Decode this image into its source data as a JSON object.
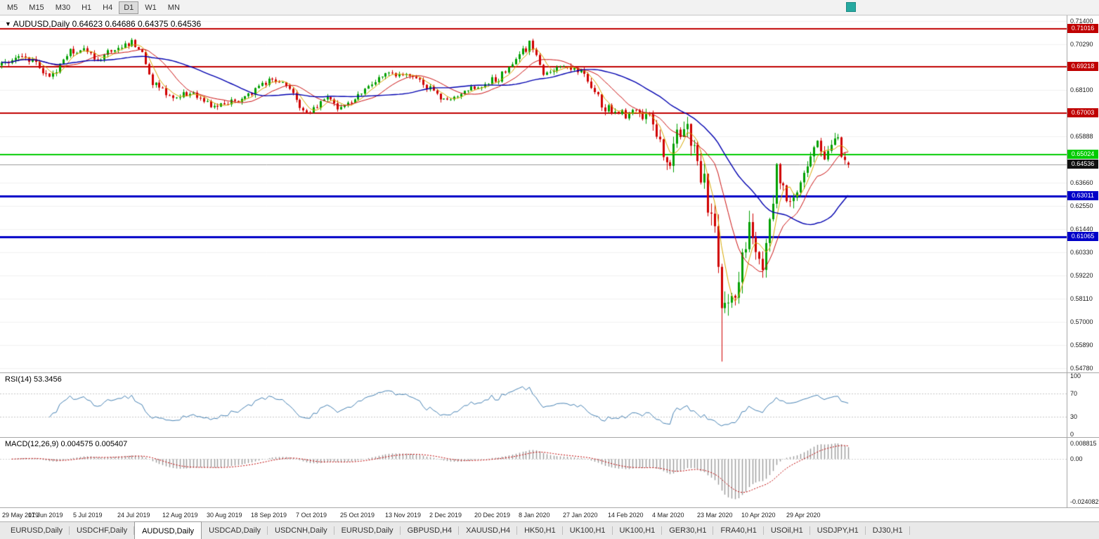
{
  "toolbar": {
    "timeframes": [
      "M5",
      "M15",
      "M30",
      "H1",
      "H4",
      "D1",
      "W1",
      "MN"
    ],
    "active_timeframe": "D1",
    "swatch_color": "#26a9a0"
  },
  "chart": {
    "title_marker": "▼",
    "symbol_title": "AUDUSD,Daily",
    "ohlc_text": "0.64623 0.64686 0.64375 0.64536"
  },
  "chart_data": {
    "type": "candlestick",
    "symbol": "AUDUSD",
    "timeframe": "Daily",
    "open": 0.64623,
    "high": 0.64686,
    "low": 0.64375,
    "close": 0.64536,
    "candle_count": 248,
    "y_range": [
      0.5478,
      0.714
    ],
    "y_ticks": [
      {
        "label": "0.71400",
        "value": 0.714
      },
      {
        "label": "0.70290",
        "value": 0.7029
      },
      {
        "label": "0.68100",
        "value": 0.681
      },
      {
        "label": "0.65888",
        "value": 0.65888
      },
      {
        "label": "0.63660",
        "value": 0.6366
      },
      {
        "label": "0.62550",
        "value": 0.6255
      },
      {
        "label": "0.61440",
        "value": 0.6144
      },
      {
        "label": "0.60330",
        "value": 0.6033
      },
      {
        "label": "0.59220",
        "value": 0.5922
      },
      {
        "label": "0.58110",
        "value": 0.5811
      },
      {
        "label": "0.57000",
        "value": 0.57
      },
      {
        "label": "0.55890",
        "value": 0.5589
      },
      {
        "label": "0.54780",
        "value": 0.5478
      }
    ],
    "hlines": [
      {
        "label": "0.71016",
        "value": 0.71016,
        "color": "#c00000",
        "width": 2
      },
      {
        "label": "0.69218",
        "value": 0.69218,
        "color": "#c00000",
        "width": 2
      },
      {
        "label": "0.67003",
        "value": 0.67003,
        "color": "#c00000",
        "width": 2
      },
      {
        "label": "0.65024",
        "value": 0.65024,
        "color": "#00cc00",
        "width": 2
      },
      {
        "label": "0.63011",
        "value": 0.63011,
        "color": "#0000c8",
        "width": 3
      },
      {
        "label": "0.61065",
        "value": 0.61065,
        "color": "#0000c8",
        "width": 3
      }
    ],
    "current_price": {
      "label": "0.64536",
      "value": 0.64536,
      "badge_color": "#101010",
      "line_color": "#9a9a9a"
    },
    "up_color": "#00a000",
    "down_color": "#d00000",
    "ma_lines": [
      {
        "period": 5,
        "color": "#d8a800",
        "width": 1
      },
      {
        "period": 13,
        "color": "#cc1111",
        "width": 1
      },
      {
        "period": 34,
        "color": "#0000b0",
        "width": 1.4
      }
    ],
    "price_anchors": [
      [
        0,
        0.692
      ],
      [
        6,
        0.6975
      ],
      [
        10,
        0.693
      ],
      [
        14,
        0.687
      ],
      [
        20,
        0.699
      ],
      [
        24,
        0.7005
      ],
      [
        28,
        0.696
      ],
      [
        32,
        0.7
      ],
      [
        38,
        0.704
      ],
      [
        41,
        0.699
      ],
      [
        44,
        0.685
      ],
      [
        48,
        0.68
      ],
      [
        50,
        0.6765
      ],
      [
        54,
        0.68
      ],
      [
        57,
        0.6785
      ],
      [
        61,
        0.6745
      ],
      [
        65,
        0.673
      ],
      [
        69,
        0.676
      ],
      [
        73,
        0.68
      ],
      [
        79,
        0.6875
      ],
      [
        83,
        0.684
      ],
      [
        86,
        0.676
      ],
      [
        89,
        0.669
      ],
      [
        93,
        0.675
      ],
      [
        95,
        0.6775
      ],
      [
        98,
        0.673
      ],
      [
        102,
        0.676
      ],
      [
        106,
        0.681
      ],
      [
        112,
        0.6895
      ],
      [
        116,
        0.6885
      ],
      [
        121,
        0.686
      ],
      [
        126,
        0.68
      ],
      [
        130,
        0.676
      ],
      [
        134,
        0.6785
      ],
      [
        138,
        0.682
      ],
      [
        142,
        0.684
      ],
      [
        146,
        0.688
      ],
      [
        150,
        0.696
      ],
      [
        154,
        0.7025
      ],
      [
        156,
        0.6965
      ],
      [
        158,
        0.688
      ],
      [
        161,
        0.69
      ],
      [
        164,
        0.6915
      ],
      [
        167,
        0.692
      ],
      [
        170,
        0.688
      ],
      [
        173,
        0.68
      ],
      [
        176,
        0.6715
      ],
      [
        179,
        0.67
      ],
      [
        182,
        0.669
      ],
      [
        185,
        0.671
      ],
      [
        188,
        0.668
      ],
      [
        190,
        0.6655
      ],
      [
        192,
        0.656
      ],
      [
        194,
        0.645
      ],
      [
        196,
        0.652
      ],
      [
        198,
        0.6625
      ],
      [
        200,
        0.661
      ],
      [
        203,
        0.648
      ],
      [
        205,
        0.636
      ],
      [
        207,
        0.621
      ],
      [
        209,
        0.595
      ],
      [
        211,
        0.574
      ],
      [
        213,
        0.582
      ],
      [
        215,
        0.594
      ],
      [
        217,
        0.608
      ],
      [
        219,
        0.613
      ],
      [
        221,
        0.5985
      ],
      [
        223,
        0.604
      ],
      [
        225,
        0.63
      ],
      [
        226,
        0.643
      ],
      [
        228,
        0.6355
      ],
      [
        230,
        0.628
      ],
      [
        232,
        0.633
      ],
      [
        234,
        0.642
      ],
      [
        236,
        0.65
      ],
      [
        238,
        0.655
      ],
      [
        240,
        0.648
      ],
      [
        242,
        0.6545
      ],
      [
        244,
        0.656
      ],
      [
        246,
        0.6495
      ],
      [
        247,
        0.64536
      ]
    ],
    "volatility_anchors": [
      [
        0,
        0.003
      ],
      [
        60,
        0.0028
      ],
      [
        120,
        0.0026
      ],
      [
        160,
        0.003
      ],
      [
        185,
        0.0038
      ],
      [
        192,
        0.0065
      ],
      [
        198,
        0.0075
      ],
      [
        204,
        0.0105
      ],
      [
        210,
        0.0145
      ],
      [
        214,
        0.0125
      ],
      [
        218,
        0.0105
      ],
      [
        224,
        0.0085
      ],
      [
        230,
        0.007
      ],
      [
        238,
        0.0058
      ],
      [
        247,
        0.0048
      ]
    ],
    "crash_wick": {
      "index": 210,
      "low": 0.551
    },
    "x_label_start": 1,
    "x_label_step": 13,
    "x_labels": [
      "29 May 2019",
      "17 Jun 2019",
      "5 Jul 2019",
      "24 Jul 2019",
      "12 Aug 2019",
      "30 Aug 2019",
      "18 Sep 2019",
      "7 Oct 2019",
      "25 Oct 2019",
      "13 Nov 2019",
      "2 Dec 2019",
      "20 Dec 2019",
      "8 Jan 2020",
      "27 Jan 2020",
      "14 Feb 2020",
      "4 Mar 2020",
      "23 Mar 2020",
      "10 Apr 2020",
      "29 Apr 2020"
    ],
    "rsi": {
      "label": "RSI(14) 53.3456",
      "period": 14,
      "current": 53.3456,
      "levels": [
        100,
        70,
        30,
        0
      ],
      "level_lines": [
        70,
        30
      ],
      "color": "#4682b4"
    },
    "macd": {
      "label": "MACD(12,26,9) 0.004575 0.005407",
      "fast": 12,
      "slow": 26,
      "signal": 9,
      "values_text": "0.004575 0.005407",
      "scale_labels": [
        {
          "label": "0.008815",
          "value": 0.008815
        },
        {
          "label": "0.00",
          "value": 0
        },
        {
          "label": "-0.024082",
          "value": -0.024082
        }
      ],
      "hist_color": "#9a9a9a",
      "signal_color": "#c00000"
    }
  },
  "tabs": {
    "active_index": 2,
    "items": [
      "EURUSD,Daily",
      "USDCHF,Daily",
      "AUDUSD,Daily",
      "USDCAD,Daily",
      "USDCNH,Daily",
      "EURUSD,Daily",
      "GBPUSD,H4",
      "XAUUSD,H4",
      "HK50,H1",
      "UK100,H1",
      "UK100,H1",
      "GER30,H1",
      "FRA40,H1",
      "USOil,H1",
      "USDJPY,H1",
      "DJ30,H1"
    ]
  }
}
